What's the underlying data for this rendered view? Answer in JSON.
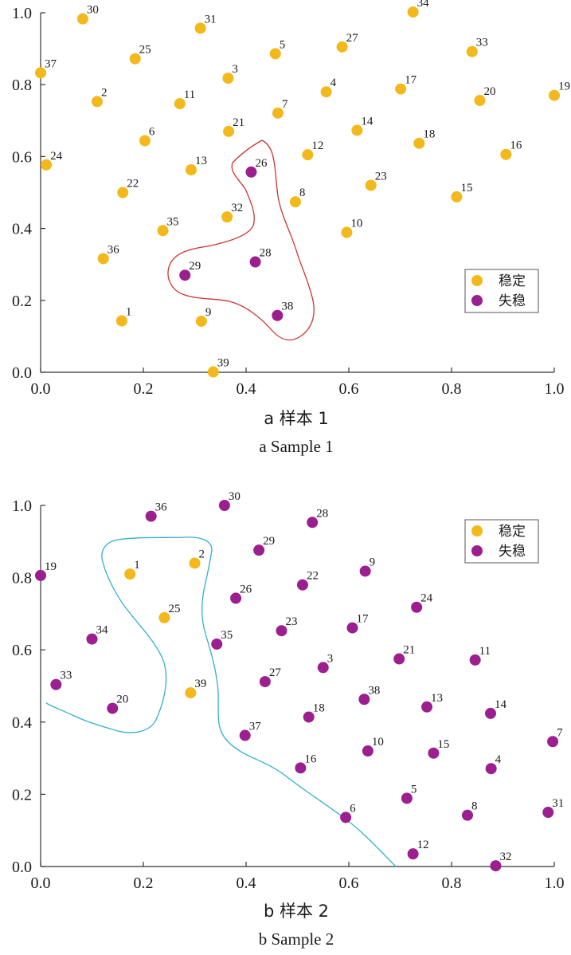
{
  "colors": {
    "stable": "#f2b81c",
    "unstable": "#9b1f8e",
    "boundary1": "#cc3333",
    "boundary2": "#33b0cc"
  },
  "legend": {
    "stable": "稳定",
    "unstable": "失稳"
  },
  "chart_data": [
    {
      "type": "scatter",
      "caption_zh": "a 样本 1",
      "caption_en": "a Sample 1",
      "xlim": [
        0,
        1
      ],
      "ylim": [
        0,
        1
      ],
      "xticks": [
        "0.0",
        "0.2",
        "0.4",
        "0.6",
        "0.8",
        "1.0"
      ],
      "yticks": [
        "0.0",
        "0.2",
        "0.4",
        "0.6",
        "0.8",
        "1.0"
      ],
      "legend_position": "lower-right",
      "series": [
        {
          "name": "稳定",
          "points": [
            {
              "id": "30",
              "x": 0.082,
              "y": 0.983
            },
            {
              "id": "31",
              "x": 0.311,
              "y": 0.957
            },
            {
              "id": "34",
              "x": 0.725,
              "y": 1.002
            },
            {
              "id": "25",
              "x": 0.184,
              "y": 0.872
            },
            {
              "id": "5",
              "x": 0.457,
              "y": 0.886
            },
            {
              "id": "27",
              "x": 0.587,
              "y": 0.905
            },
            {
              "id": "33",
              "x": 0.84,
              "y": 0.892
            },
            {
              "id": "37",
              "x": 0.0,
              "y": 0.833
            },
            {
              "id": "3",
              "x": 0.365,
              "y": 0.818
            },
            {
              "id": "2",
              "x": 0.11,
              "y": 0.753
            },
            {
              "id": "11",
              "x": 0.271,
              "y": 0.747
            },
            {
              "id": "4",
              "x": 0.556,
              "y": 0.78
            },
            {
              "id": "17",
              "x": 0.701,
              "y": 0.788
            },
            {
              "id": "20",
              "x": 0.855,
              "y": 0.756
            },
            {
              "id": "19",
              "x": 1.0,
              "y": 0.77
            },
            {
              "id": "7",
              "x": 0.462,
              "y": 0.721
            },
            {
              "id": "21",
              "x": 0.366,
              "y": 0.67
            },
            {
              "id": "14",
              "x": 0.616,
              "y": 0.673
            },
            {
              "id": "6",
              "x": 0.203,
              "y": 0.644
            },
            {
              "id": "18",
              "x": 0.737,
              "y": 0.637
            },
            {
              "id": "24",
              "x": 0.011,
              "y": 0.577
            },
            {
              "id": "12",
              "x": 0.52,
              "y": 0.605
            },
            {
              "id": "16",
              "x": 0.906,
              "y": 0.606
            },
            {
              "id": "13",
              "x": 0.293,
              "y": 0.563
            },
            {
              "id": "22",
              "x": 0.16,
              "y": 0.5
            },
            {
              "id": "23",
              "x": 0.643,
              "y": 0.52
            },
            {
              "id": "8",
              "x": 0.496,
              "y": 0.474
            },
            {
              "id": "15",
              "x": 0.81,
              "y": 0.488
            },
            {
              "id": "32",
              "x": 0.363,
              "y": 0.432
            },
            {
              "id": "35",
              "x": 0.238,
              "y": 0.394
            },
            {
              "id": "10",
              "x": 0.596,
              "y": 0.389
            },
            {
              "id": "36",
              "x": 0.122,
              "y": 0.316
            },
            {
              "id": "1",
              "x": 0.158,
              "y": 0.143
            },
            {
              "id": "9",
              "x": 0.313,
              "y": 0.142
            },
            {
              "id": "39",
              "x": 0.336,
              "y": 0.001
            }
          ]
        },
        {
          "name": "失稳",
          "points": [
            {
              "id": "26",
              "x": 0.41,
              "y": 0.557
            },
            {
              "id": "28",
              "x": 0.418,
              "y": 0.307
            },
            {
              "id": "29",
              "x": 0.281,
              "y": 0.27
            },
            {
              "id": "38",
              "x": 0.461,
              "y": 0.158
            }
          ]
        }
      ]
    },
    {
      "type": "scatter",
      "caption_zh": "b 样本 2",
      "caption_en": "b Sample 2",
      "xlim": [
        0,
        1
      ],
      "ylim": [
        0,
        1
      ],
      "xticks": [
        "0.0",
        "0.2",
        "0.4",
        "0.6",
        "0.8",
        "1.0"
      ],
      "yticks": [
        "0.0",
        "0.2",
        "0.4",
        "0.6",
        "0.8",
        "1.0"
      ],
      "legend_position": "top-right",
      "series": [
        {
          "name": "稳定",
          "points": [
            {
              "id": "1",
              "x": 0.174,
              "y": 0.81
            },
            {
              "id": "2",
              "x": 0.3,
              "y": 0.84
            },
            {
              "id": "25",
              "x": 0.241,
              "y": 0.689
            },
            {
              "id": "39",
              "x": 0.292,
              "y": 0.481
            }
          ]
        },
        {
          "name": "失稳",
          "points": [
            {
              "id": "36",
              "x": 0.215,
              "y": 0.97
            },
            {
              "id": "30",
              "x": 0.358,
              "y": 1.0
            },
            {
              "id": "28",
              "x": 0.529,
              "y": 0.953
            },
            {
              "id": "29",
              "x": 0.425,
              "y": 0.876
            },
            {
              "id": "19",
              "x": 0.0,
              "y": 0.806
            },
            {
              "id": "9",
              "x": 0.632,
              "y": 0.818
            },
            {
              "id": "22",
              "x": 0.51,
              "y": 0.78
            },
            {
              "id": "26",
              "x": 0.38,
              "y": 0.743
            },
            {
              "id": "24",
              "x": 0.732,
              "y": 0.718
            },
            {
              "id": "17",
              "x": 0.607,
              "y": 0.661
            },
            {
              "id": "23",
              "x": 0.469,
              "y": 0.653
            },
            {
              "id": "34",
              "x": 0.1,
              "y": 0.63
            },
            {
              "id": "35",
              "x": 0.343,
              "y": 0.616
            },
            {
              "id": "3",
              "x": 0.55,
              "y": 0.551
            },
            {
              "id": "21",
              "x": 0.698,
              "y": 0.575
            },
            {
              "id": "11",
              "x": 0.846,
              "y": 0.572
            },
            {
              "id": "27",
              "x": 0.437,
              "y": 0.512
            },
            {
              "id": "33",
              "x": 0.03,
              "y": 0.504
            },
            {
              "id": "38",
              "x": 0.63,
              "y": 0.463
            },
            {
              "id": "13",
              "x": 0.752,
              "y": 0.442
            },
            {
              "id": "20",
              "x": 0.14,
              "y": 0.438
            },
            {
              "id": "14",
              "x": 0.876,
              "y": 0.424
            },
            {
              "id": "18",
              "x": 0.522,
              "y": 0.414
            },
            {
              "id": "37",
              "x": 0.398,
              "y": 0.363
            },
            {
              "id": "7",
              "x": 0.997,
              "y": 0.346
            },
            {
              "id": "10",
              "x": 0.637,
              "y": 0.32
            },
            {
              "id": "15",
              "x": 0.765,
              "y": 0.314
            },
            {
              "id": "16",
              "x": 0.506,
              "y": 0.273
            },
            {
              "id": "4",
              "x": 0.877,
              "y": 0.271
            },
            {
              "id": "5",
              "x": 0.713,
              "y": 0.189
            },
            {
              "id": "31",
              "x": 0.988,
              "y": 0.15
            },
            {
              "id": "8",
              "x": 0.831,
              "y": 0.142
            },
            {
              "id": "6",
              "x": 0.594,
              "y": 0.136
            },
            {
              "id": "12",
              "x": 0.725,
              "y": 0.035
            },
            {
              "id": "32",
              "x": 0.886,
              "y": 0.002
            }
          ]
        }
      ]
    }
  ]
}
